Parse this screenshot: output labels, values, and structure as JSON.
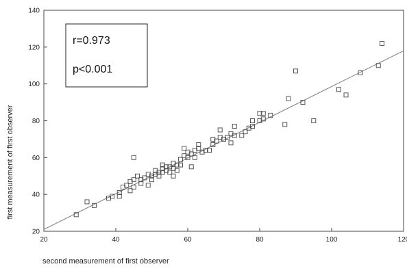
{
  "chart_data": {
    "type": "scatter",
    "xlabel": "second measurement of first observer",
    "ylabel": "first measurement of first observer",
    "xlim": [
      20,
      120
    ],
    "ylim": [
      20,
      140
    ],
    "xticks": [
      "20",
      "40",
      "60",
      "80",
      "100",
      "120"
    ],
    "yticks": [
      "20",
      "40",
      "60",
      "80",
      "100",
      "120",
      "140"
    ],
    "grid": false,
    "legend": "none",
    "annotations": {
      "r": "r=0.973",
      "p": "p<0.001"
    },
    "regression_line": {
      "x": [
        20,
        120
      ],
      "y": [
        21,
        118
      ]
    },
    "marker": "open-square",
    "colors": {
      "marker": "#555555",
      "line": "#777777",
      "axis": "#444444"
    },
    "series": [
      {
        "points": [
          [
            29,
            29
          ],
          [
            32,
            36
          ],
          [
            34,
            34
          ],
          [
            38,
            38
          ],
          [
            39,
            39
          ],
          [
            41,
            41
          ],
          [
            41,
            39
          ],
          [
            42,
            44
          ],
          [
            43,
            45
          ],
          [
            44,
            42
          ],
          [
            44,
            47
          ],
          [
            45,
            44
          ],
          [
            45,
            48
          ],
          [
            45,
            60
          ],
          [
            46,
            50
          ],
          [
            47,
            46
          ],
          [
            47,
            48
          ],
          [
            48,
            49
          ],
          [
            49,
            45
          ],
          [
            49,
            51
          ],
          [
            50,
            48
          ],
          [
            50,
            50
          ],
          [
            51,
            51
          ],
          [
            51,
            53
          ],
          [
            52,
            52
          ],
          [
            52,
            50
          ],
          [
            53,
            52
          ],
          [
            53,
            54
          ],
          [
            53,
            56
          ],
          [
            54,
            53
          ],
          [
            54,
            55
          ],
          [
            55,
            52
          ],
          [
            55,
            55
          ],
          [
            56,
            50
          ],
          [
            56,
            54
          ],
          [
            56,
            57
          ],
          [
            57,
            53
          ],
          [
            57,
            56
          ],
          [
            58,
            56
          ],
          [
            58,
            59
          ],
          [
            59,
            61
          ],
          [
            59,
            65
          ],
          [
            60,
            60
          ],
          [
            60,
            63
          ],
          [
            61,
            55
          ],
          [
            61,
            62
          ],
          [
            62,
            60
          ],
          [
            62,
            64
          ],
          [
            63,
            65
          ],
          [
            63,
            67
          ],
          [
            64,
            63
          ],
          [
            65,
            64
          ],
          [
            66,
            64
          ],
          [
            67,
            67
          ],
          [
            67,
            70
          ],
          [
            68,
            69
          ],
          [
            69,
            71
          ],
          [
            69,
            75
          ],
          [
            70,
            70
          ],
          [
            71,
            71
          ],
          [
            72,
            68
          ],
          [
            72,
            73
          ],
          [
            73,
            72
          ],
          [
            73,
            77
          ],
          [
            75,
            72
          ],
          [
            76,
            74
          ],
          [
            77,
            76
          ],
          [
            78,
            77
          ],
          [
            78,
            80
          ],
          [
            80,
            80
          ],
          [
            80,
            84
          ],
          [
            81,
            84
          ],
          [
            81,
            81
          ],
          [
            83,
            83
          ],
          [
            87,
            78
          ],
          [
            88,
            92
          ],
          [
            90,
            107
          ],
          [
            92,
            90
          ],
          [
            95,
            80
          ],
          [
            102,
            97
          ],
          [
            104,
            94
          ],
          [
            108,
            106
          ],
          [
            113,
            110
          ],
          [
            114,
            122
          ]
        ]
      }
    ]
  }
}
